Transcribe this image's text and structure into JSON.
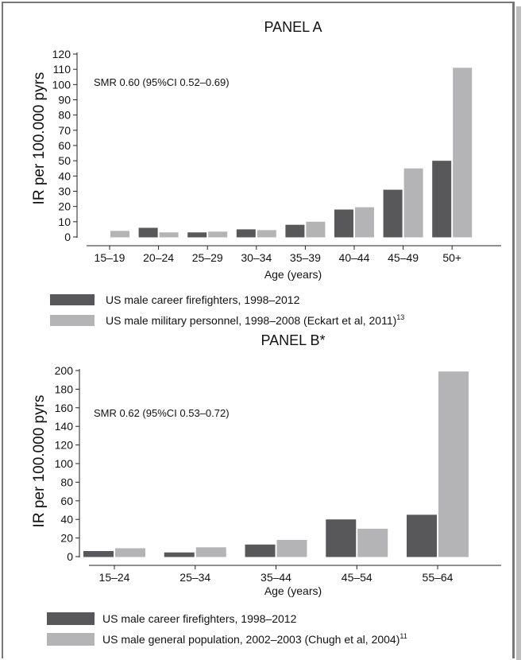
{
  "chart_data": [
    {
      "type": "bar",
      "title": "PANEL A",
      "xlabel": "Age (years)",
      "ylabel": "IR per 100.000 pyrs",
      "annotation": "SMR 0.60 (95%CI 0.52–0.69)",
      "categories": [
        "15–19",
        "20–24",
        "25–29",
        "30–34",
        "35–39",
        "40–44",
        "45–49",
        "50+"
      ],
      "ylim": [
        0,
        120
      ],
      "yticks": [
        0,
        10,
        20,
        30,
        40,
        50,
        60,
        70,
        80,
        90,
        100,
        110,
        120
      ],
      "grid": false,
      "legend_position": "below",
      "series": [
        {
          "name": "US male career firefighters, 1998–2012",
          "color": "#58585a",
          "values": [
            0,
            6,
            3,
            5,
            8,
            18,
            31,
            50
          ]
        },
        {
          "name": "US male military personnel, 1998–2008 (Eckart et al, 2011)",
          "sup": "13",
          "color": "#b4b4b6",
          "values": [
            4,
            3,
            3.5,
            4.5,
            10,
            19.5,
            45,
            111
          ]
        }
      ]
    },
    {
      "type": "bar",
      "title": "PANEL B*",
      "xlabel": "Age (years)",
      "ylabel": "IR per 100.000 pyrs",
      "annotation": "SMR 0.62 (95%CI 0.53–0.72)",
      "categories": [
        "15–24",
        "25–34",
        "35–44",
        "45–54",
        "55–64"
      ],
      "ylim": [
        0,
        200
      ],
      "yticks": [
        0,
        20,
        40,
        60,
        80,
        100,
        120,
        140,
        160,
        180,
        200
      ],
      "grid": false,
      "legend_position": "below",
      "series": [
        {
          "name": "US male career firefighters, 1998–2012",
          "color": "#58585a",
          "values": [
            6,
            4.5,
            13,
            40,
            45
          ]
        },
        {
          "name": "US male general population, 2002–2003 (Chugh et al, 2004)",
          "sup": "11",
          "color": "#b4b4b6",
          "values": [
            9,
            10,
            18,
            30,
            199
          ]
        }
      ]
    }
  ]
}
